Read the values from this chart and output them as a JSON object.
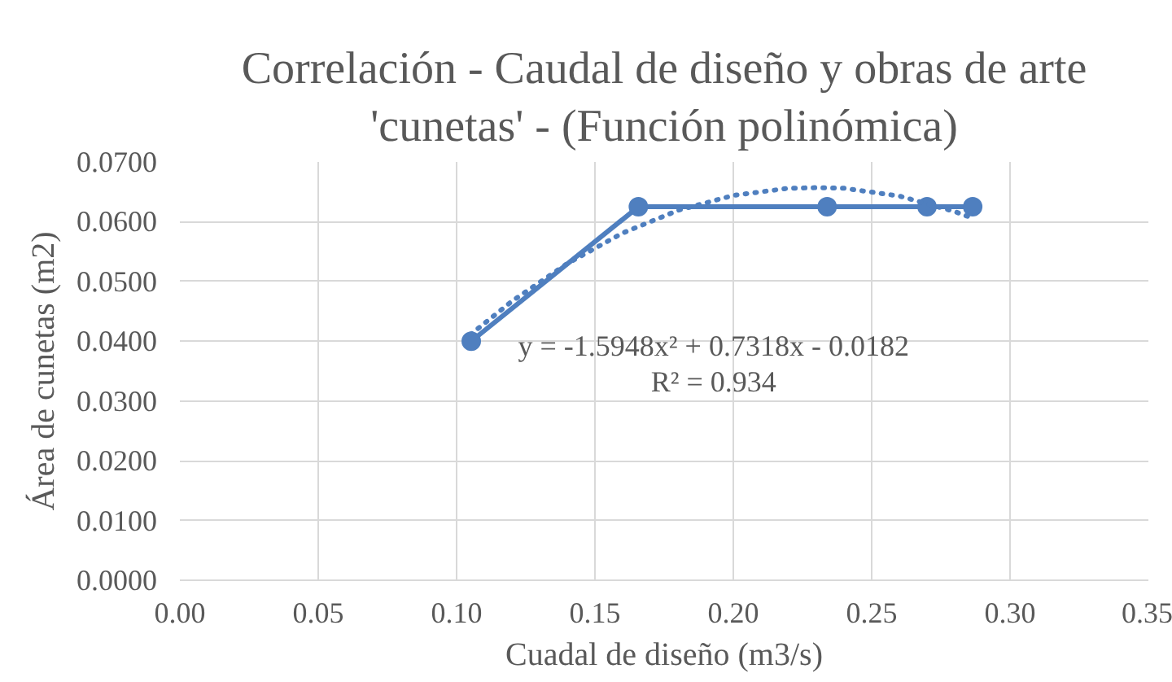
{
  "chart_data": {
    "type": "line",
    "title": "Correlación - Caudal de diseño y obras de arte 'cunetas' - (Función polinómica)",
    "xlabel": "Cuadal de diseño (m3/s)",
    "ylabel": "Área de cunetas (m2)",
    "series": [
      {
        "color": "#4f7fbf",
        "x": [
          0.1053,
          0.1657,
          0.2339,
          0.27,
          0.2865
        ],
        "values": [
          0.04,
          0.0625,
          0.0625,
          0.0625,
          0.0625
        ]
      },
      {
        "type": "line",
        "color": "#4f7fbf",
        "line_style": "dotted",
        "marker": "none",
        "x": [
          0.105,
          0.12,
          0.14,
          0.16,
          0.18,
          0.2,
          0.22,
          0.23,
          0.24,
          0.26,
          0.28,
          0.287
        ],
        "values": [
          0.0411,
          0.0467,
          0.053,
          0.0581,
          0.0619,
          0.0644,
          0.0656,
          0.0657,
          0.0656,
          0.0643,
          0.0617,
          0.0605
        ]
      }
    ],
    "xlim": [
      0,
      0.35
    ],
    "xticks": [
      {
        "value": 0,
        "label": "0.00"
      },
      {
        "value": 0.05,
        "label": "0.05"
      },
      {
        "value": 0.1,
        "label": "0.10"
      },
      {
        "value": 0.15,
        "label": "0.15"
      },
      {
        "value": 0.2,
        "label": "0.20"
      },
      {
        "value": 0.25,
        "label": "0.25"
      },
      {
        "value": 0.3,
        "label": "0.30"
      },
      {
        "value": 0.35,
        "label": "0.35"
      }
    ],
    "ylim": [
      0,
      0.07
    ],
    "yticks": [
      {
        "value": 0,
        "label": "0.0000"
      },
      {
        "value": 0.01,
        "label": "0.0100"
      },
      {
        "value": 0.02,
        "label": "0.0200"
      },
      {
        "value": 0.03,
        "label": "0.0300"
      },
      {
        "value": 0.04,
        "label": "0.0400"
      },
      {
        "value": 0.05,
        "label": "0.0500"
      },
      {
        "value": 0.06,
        "label": "0.0600"
      },
      {
        "value": 0.07,
        "label": "0.0700"
      }
    ],
    "annotations": [
      "y = -1.5948x² + 0.7318x - 0.0182",
      "R² = 0.934"
    ],
    "grid": true,
    "marker": "circle",
    "line_style": "solid"
  }
}
